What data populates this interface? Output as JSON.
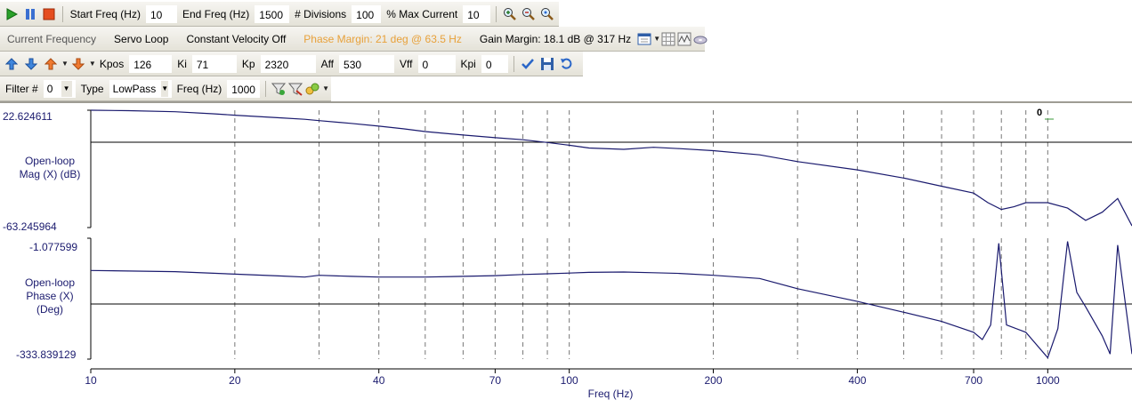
{
  "toolbar1": {
    "start_freq_label": "Start Freq (Hz)",
    "start_freq_value": "10",
    "end_freq_label": "End Freq (Hz)",
    "end_freq_value": "1500",
    "divisions_label": "# Divisions",
    "divisions_value": "100",
    "max_current_label": "% Max Current",
    "max_current_value": "10"
  },
  "toolbar2": {
    "current_frequency": "Current Frequency",
    "servo_loop": "Servo Loop",
    "constant_velocity": "Constant Velocity Off",
    "phase_margin": "Phase Margin: 21 deg @ 63.5 Hz",
    "gain_margin": "Gain Margin: 18.1 dB @ 317 Hz"
  },
  "toolbar3": {
    "kpos_label": "Kpos",
    "kpos_value": "126",
    "ki_label": "Ki",
    "ki_value": "71",
    "kp_label": "Kp",
    "kp_value": "2320",
    "aff_label": "Aff",
    "aff_value": "530",
    "vff_label": "Vff",
    "vff_value": "0",
    "kpi_label": "Kpi",
    "kpi_value": "0"
  },
  "toolbar4": {
    "filter_label": "Filter #",
    "filter_value": "0",
    "type_label": "Type",
    "type_value": "LowPass",
    "freq_label": "Freq (Hz)",
    "freq_value": "1000"
  },
  "colors": {
    "trace": "#1a1a6e",
    "axis_text": "#1a1a6e",
    "phase_margin_text": "#e8a13a"
  },
  "chart_data": [
    {
      "type": "line",
      "ylabel": "Open-loop Mag (X) (dB)",
      "ylim": [
        -63.245964,
        22.624611
      ],
      "ytick_labels": [
        "22.624611",
        "-63.245964"
      ],
      "marker_label": "0",
      "x_scale": "log",
      "xlim": [
        10,
        1500
      ],
      "x": [
        10,
        12,
        15,
        18,
        20,
        25,
        28,
        30,
        35,
        40,
        45,
        50,
        60,
        70,
        80,
        90,
        100,
        110,
        130,
        150,
        170,
        200,
        250,
        300,
        400,
        500,
        600,
        700,
        750,
        800,
        850,
        900,
        1000,
        1100,
        1200,
        1300,
        1400,
        1500
      ],
      "y": [
        22.6,
        22.3,
        21.5,
        20.0,
        19.0,
        17.0,
        16.0,
        15.0,
        13.0,
        11.0,
        9.0,
        7.0,
        4.5,
        2.5,
        1.0,
        -1.0,
        -3.0,
        -5.0,
        -6.0,
        -4.5,
        -5.5,
        -7.0,
        -10.0,
        -15.0,
        -21.0,
        -27.0,
        -33.0,
        -38.0,
        -45.0,
        -50.0,
        -48.0,
        -45.0,
        -45.0,
        -49.0,
        -58.0,
        -52.0,
        -42.0,
        -62.0
      ],
      "grid": true
    },
    {
      "type": "line",
      "ylabel": "Open-loop Phase (X) (Deg)",
      "ylim": [
        -333.839129,
        -1.077599
      ],
      "ytick_labels": [
        "-1.077599",
        "-333.839129"
      ],
      "x_scale": "log",
      "xlim": [
        10,
        1500
      ],
      "xlabel": "Freq (Hz)",
      "xtick_labels": [
        "10",
        "20",
        "40",
        "70",
        "100",
        "200",
        "400",
        "700",
        "1000"
      ],
      "x": [
        10,
        15,
        20,
        25,
        28,
        30,
        35,
        40,
        50,
        60,
        70,
        80,
        90,
        100,
        110,
        130,
        150,
        170,
        200,
        250,
        300,
        400,
        500,
        600,
        700,
        730,
        760,
        790,
        820,
        900,
        1000,
        1050,
        1100,
        1150,
        1200,
        1300,
        1350,
        1400,
        1500
      ],
      "y": [
        -90,
        -93,
        -100,
        -105,
        -108,
        -103,
        -106,
        -108,
        -108,
        -106,
        -104,
        -101,
        -99,
        -97,
        -95,
        -94,
        -96,
        -98,
        -103,
        -112,
        -140,
        -175,
        -205,
        -230,
        -260,
        -280,
        -240,
        -15,
        -240,
        -260,
        -330,
        -250,
        -10,
        -150,
        -190,
        -270,
        -320,
        -20,
        -320
      ],
      "grid": true
    }
  ]
}
